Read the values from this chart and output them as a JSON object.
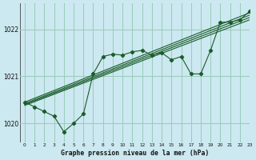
{
  "title": "Graphe pression niveau de la mer (hPa)",
  "background_color": "#cce8f0",
  "grid_color": "#99ccbb",
  "line_color": "#1a5c2a",
  "xlim": [
    -0.5,
    23
  ],
  "ylim": [
    1019.6,
    1022.55
  ],
  "yticks": [
    1020,
    1021,
    1022
  ],
  "xticks": [
    0,
    1,
    2,
    3,
    4,
    5,
    6,
    7,
    8,
    9,
    10,
    11,
    12,
    13,
    14,
    15,
    16,
    17,
    18,
    19,
    20,
    21,
    22,
    23
  ],
  "straight_lines": [
    {
      "x": [
        0,
        23
      ],
      "y": [
        1020.45,
        1022.35
      ]
    },
    {
      "x": [
        0,
        23
      ],
      "y": [
        1020.42,
        1022.3
      ]
    },
    {
      "x": [
        0,
        23
      ],
      "y": [
        1020.4,
        1022.25
      ]
    },
    {
      "x": [
        0,
        23
      ],
      "y": [
        1020.38,
        1022.2
      ]
    }
  ],
  "jagged_x": [
    0,
    1,
    2,
    3,
    4,
    5,
    6,
    7,
    8,
    9,
    10,
    11,
    12,
    13,
    14,
    15,
    16,
    17,
    18,
    19,
    20,
    21,
    22,
    23
  ],
  "jagged_y": [
    1020.45,
    1020.35,
    1020.25,
    1020.15,
    1019.82,
    1020.0,
    1020.2,
    1021.05,
    1021.42,
    1021.47,
    1021.45,
    1021.52,
    1021.55,
    1021.45,
    1021.5,
    1021.35,
    1021.42,
    1021.05,
    1021.05,
    1021.55,
    1022.15,
    1022.15,
    1022.2,
    1022.38
  ],
  "marker_x": [
    0,
    1,
    2,
    3,
    4,
    5,
    6,
    7,
    8,
    9,
    10,
    11,
    12,
    13,
    14,
    15,
    16,
    17,
    18,
    19,
    20,
    21,
    22,
    23
  ],
  "marker_y": [
    1020.45,
    1020.35,
    1020.25,
    1020.15,
    1019.82,
    1020.0,
    1020.2,
    1021.05,
    1021.42,
    1021.47,
    1021.45,
    1021.52,
    1021.55,
    1021.45,
    1021.5,
    1021.35,
    1021.42,
    1021.05,
    1021.05,
    1021.55,
    1022.15,
    1022.15,
    1022.2,
    1022.38
  ]
}
